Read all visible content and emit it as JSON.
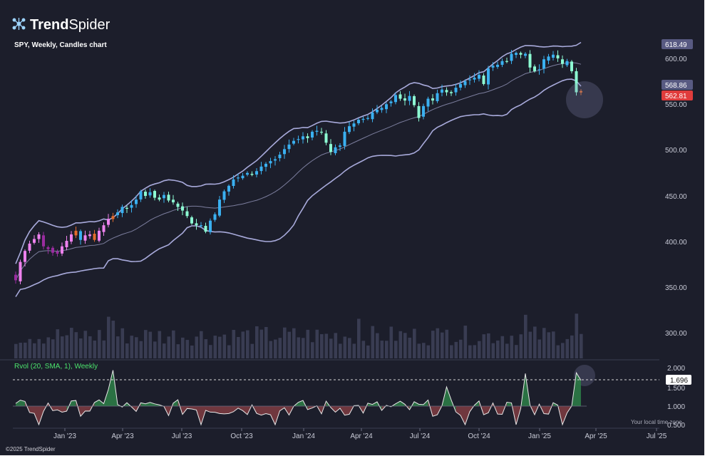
{
  "brand": {
    "name_prefix": "Trend",
    "name_suffix": "Spider",
    "copyright": "©2025 TrendSpider",
    "logo_icon": "network-nodes-icon"
  },
  "chart": {
    "title": "SPY, Weekly, Candles chart"
  },
  "indicator": {
    "label": "Rvol (20, SMA, 1), Weekly"
  },
  "price_axis": {
    "ticks": [
      "600.00",
      "550.00",
      "500.00",
      "450.00",
      "400.00",
      "350.00",
      "300.00"
    ],
    "badges": {
      "upper_band": "618.49",
      "mid_band": "568.86",
      "last_price": "562.81"
    }
  },
  "rvol_axis": {
    "ticks": [
      "2.000",
      "1.500",
      "1.000"
    ],
    "badge": "1.696",
    "extra": "0.500"
  },
  "time_axis": {
    "labels": [
      "Jan '23",
      "Apr '23",
      "Jul '23",
      "Oct '23",
      "Jan '24",
      "Apr '24",
      "Jul '24",
      "Oct '24",
      "Jan '25",
      "Apr '25",
      "Jul '25"
    ],
    "note": "Your local time zone"
  },
  "colors": {
    "background": "#1c1e2b",
    "up": "#3ab0f0",
    "down": "#ee82ee",
    "aqua": "#8dfcd3",
    "orange": "#e36b2c",
    "band": "#a8aadb",
    "volume": "#393c52",
    "rvol_up": "#2c7a46",
    "rvol_down": "#7a3a40",
    "last_price_badge": "#e03c3c"
  },
  "chart_data": {
    "type": "candlestick",
    "symbol": "SPY",
    "interval": "Weekly",
    "y_range": [
      280,
      625
    ],
    "closes": [
      358,
      378,
      390,
      398,
      403,
      408,
      395,
      392,
      388,
      387,
      395,
      401,
      408,
      412,
      402,
      407,
      408,
      402,
      412,
      418,
      425,
      428,
      432,
      438,
      436,
      440,
      446,
      455,
      450,
      454,
      448,
      446,
      451,
      445,
      443,
      438,
      434,
      428,
      420,
      418,
      418,
      411,
      423,
      430,
      446,
      455,
      461,
      468,
      470,
      472,
      475,
      473,
      477,
      482,
      485,
      488,
      490,
      495,
      501,
      506,
      510,
      512,
      515,
      513,
      520,
      521,
      519,
      508,
      498,
      503,
      505,
      520,
      526,
      529,
      533,
      534,
      535,
      541,
      544,
      546,
      550,
      553,
      560,
      556,
      554,
      559,
      549,
      535,
      548,
      556,
      554,
      562,
      566,
      563,
      562,
      568,
      572,
      575,
      577,
      579,
      582,
      572,
      589,
      592,
      593,
      597,
      597,
      605,
      606,
      604,
      605,
      590,
      586,
      588,
      599,
      602,
      604,
      600,
      594,
      597,
      586,
      563,
      562.81
    ],
    "upper_band_end": 618.49,
    "middle_band_end": 568.86,
    "last_price": 562.81,
    "rvol_current": 1.696,
    "rvol_max": 2.0
  }
}
